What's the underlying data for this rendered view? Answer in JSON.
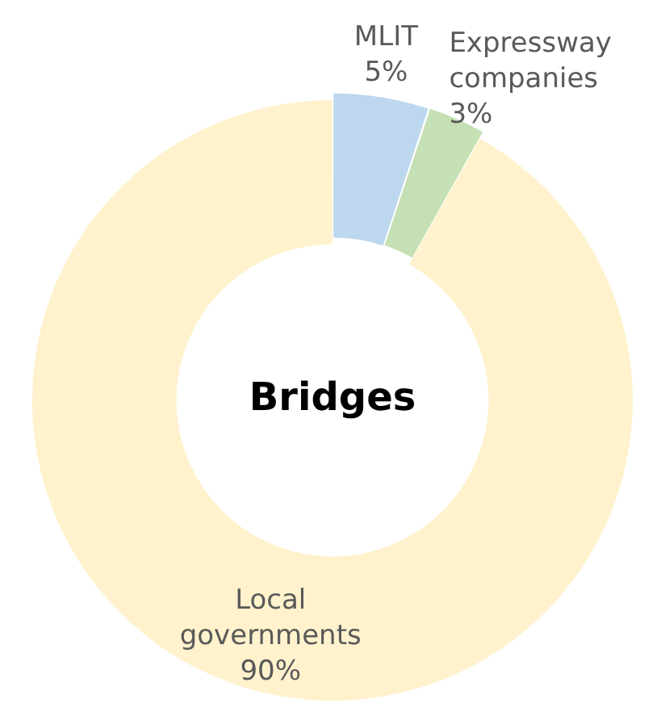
{
  "chart_data": {
    "type": "donut",
    "title": "Bridges",
    "categories": [
      "MLIT",
      "Expressway companies",
      "Local governments"
    ],
    "values": [
      5,
      3,
      90
    ],
    "colors": [
      "#bdd7ee",
      "#c5e0b4",
      "#fff2cc"
    ],
    "value_labels": [
      "5%",
      "3%",
      "90%"
    ],
    "legend": false
  }
}
